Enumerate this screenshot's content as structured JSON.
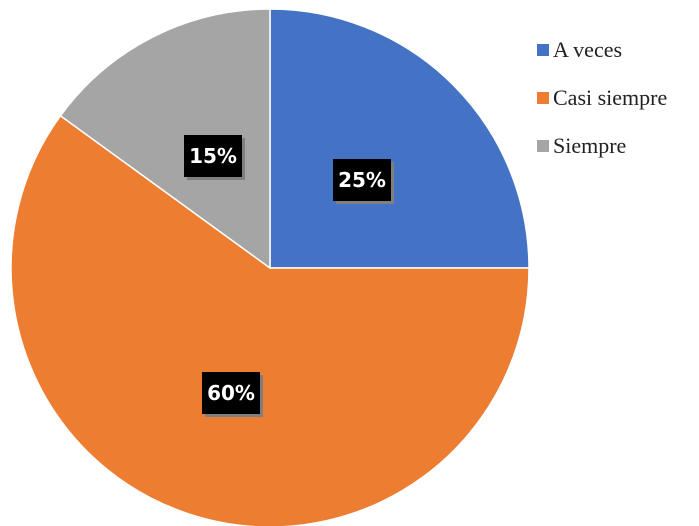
{
  "chart_data": {
    "type": "pie",
    "categories": [
      "A veces",
      "Casi siempre",
      "Siempre"
    ],
    "values": [
      25,
      60,
      15
    ],
    "labels": [
      "25%",
      "60%",
      "15%"
    ],
    "colors": [
      "#4472C4",
      "#ED7D31",
      "#A5A5A5"
    ],
    "start_angle": "12 o'clock",
    "direction": "clockwise",
    "legend_position": "top-right"
  }
}
